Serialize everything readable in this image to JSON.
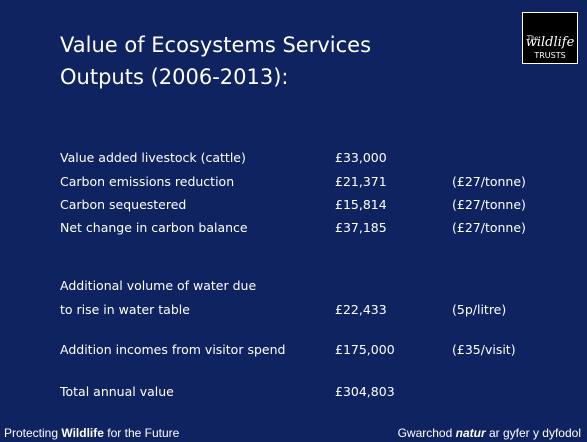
{
  "title": [
    "Value of Ecosystems Services",
    "Outputs (2006-2013):"
  ],
  "logo": {
    "small": "The",
    "main": "wildlife",
    "sub": "TRUSTS"
  },
  "rows": [
    {
      "label": "Value added livestock (cattle)",
      "value": "£33,000"
    },
    {
      "label": "Carbon emissions reduction",
      "value": "£21,371",
      "note": "(£27/tonne)"
    },
    {
      "label": "Carbon sequestered",
      "value": "£15,814",
      "note": "(£27/tonne)"
    },
    {
      "label": "Net change in carbon balance",
      "value": "£37,185",
      "note": "(£27/tonne)"
    },
    {
      "label": "Additional volume of water due"
    },
    {
      "label": "to rise in water table",
      "value": "£22,433",
      "note": "(5p/litre)"
    },
    {
      "label": "Addition incomes from visitor spend",
      "value": "£175,000",
      "note": "(£35/visit)"
    },
    {
      "label": "Total annual value",
      "value": "£304,803"
    }
  ],
  "footer": {
    "left": [
      "Protecting",
      "Wildlife",
      "for the Future"
    ],
    "right": [
      "Gwarchod",
      "natur",
      "ar gyfer y dyfodol"
    ]
  }
}
